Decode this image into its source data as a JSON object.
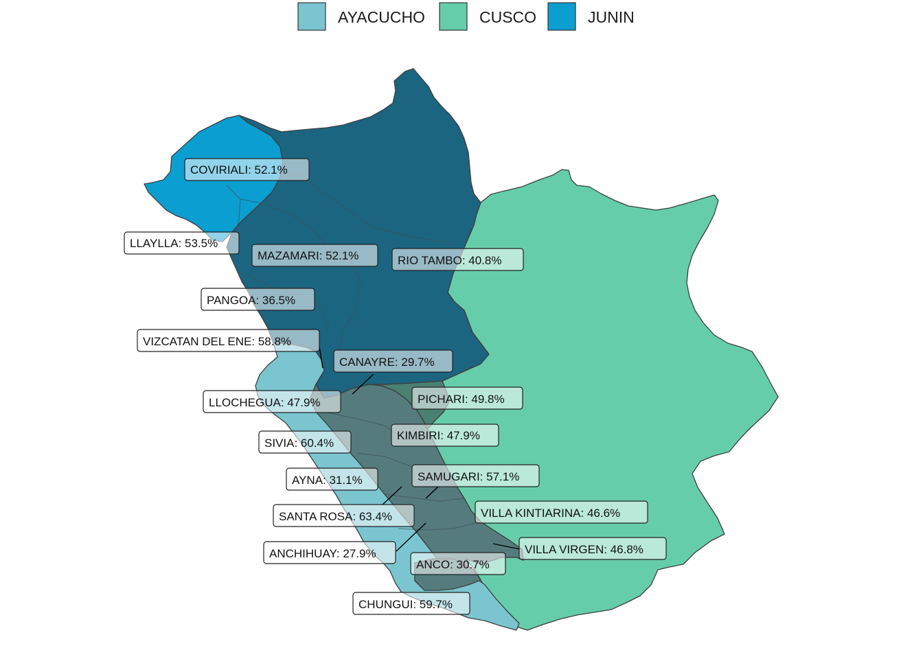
{
  "legend": {
    "items": [
      {
        "label": "AYACUCHO",
        "color": "#7ac5d0"
      },
      {
        "label": "CUSCO",
        "color": "#66cdaa"
      },
      {
        "label": "JUNIN",
        "color": "#0b9ed0"
      }
    ]
  },
  "colors": {
    "ayacucho": "#7ac5d0",
    "cusco": "#66cdaa",
    "junin": "#0b9ed0",
    "vraem_junin": "#1b6580",
    "vraem_ayacucho": "#557b7d",
    "vraem_cusco": "#4a8072"
  },
  "districts": [
    {
      "id": "coviriali",
      "label": "COVIRIALI: 52.1%"
    },
    {
      "id": "llaylla",
      "label": "LLAYLLA: 53.5%"
    },
    {
      "id": "mazamari",
      "label": "MAZAMARI: 52.1%"
    },
    {
      "id": "rio-tambo",
      "label": "RIO TAMBO: 40.8%"
    },
    {
      "id": "pangoa",
      "label": "PANGOA: 36.5%"
    },
    {
      "id": "vizcatan-del-ene",
      "label": "VIZCATAN DEL ENE: 58.8%"
    },
    {
      "id": "canayre",
      "label": "CANAYRE: 29.7%"
    },
    {
      "id": "llochegua",
      "label": "LLOCHEGUA: 47.9%"
    },
    {
      "id": "pichari",
      "label": "PICHARI: 49.8%"
    },
    {
      "id": "sivia",
      "label": "SIVIA: 60.4%"
    },
    {
      "id": "kimbiri",
      "label": "KIMBIRI: 47.9%"
    },
    {
      "id": "ayna",
      "label": "AYNA: 31.1%"
    },
    {
      "id": "samugari",
      "label": "SAMUGARI: 57.1%"
    },
    {
      "id": "santa-rosa",
      "label": "SANTA ROSA: 63.4%"
    },
    {
      "id": "villa-kintiarina",
      "label": "VILLA KINTIARINA: 46.6%"
    },
    {
      "id": "anchihuay",
      "label": "ANCHIHUAY: 27.9%"
    },
    {
      "id": "villa-virgen",
      "label": "VILLA VIRGEN: 46.8%"
    },
    {
      "id": "anco",
      "label": "ANCO: 30.7%"
    },
    {
      "id": "chungui",
      "label": "CHUNGUI: 59.7%"
    }
  ]
}
